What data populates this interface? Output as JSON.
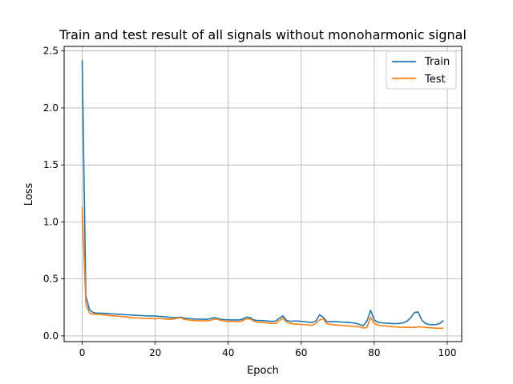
{
  "chart_data": {
    "type": "line",
    "title": "Train and test result of all signals without monoharmonic signal",
    "xlabel": "Epoch",
    "ylabel": "Loss",
    "xlim": [
      -4.95,
      103.95
    ],
    "ylim": [
      -0.05,
      2.54
    ],
    "xticks": [
      0,
      20,
      40,
      60,
      80,
      100
    ],
    "yticks": [
      0.0,
      0.5,
      1.0,
      1.5,
      2.0,
      2.5
    ],
    "xtick_labels": [
      "0",
      "20",
      "40",
      "60",
      "80",
      "100"
    ],
    "ytick_labels": [
      "0.0",
      "0.5",
      "1.0",
      "1.5",
      "2.0",
      "2.5"
    ],
    "grid": true,
    "legend_position": "top-right",
    "colors": {
      "Train": "#1f77b4",
      "Test": "#ff7f0e"
    },
    "x": [
      0,
      1,
      2,
      3,
      4,
      5,
      6,
      7,
      8,
      9,
      10,
      11,
      12,
      13,
      14,
      15,
      16,
      17,
      18,
      19,
      20,
      21,
      22,
      23,
      24,
      25,
      26,
      27,
      28,
      29,
      30,
      31,
      32,
      33,
      34,
      35,
      36,
      37,
      38,
      39,
      40,
      41,
      42,
      43,
      44,
      45,
      46,
      47,
      48,
      49,
      50,
      51,
      52,
      53,
      54,
      55,
      56,
      57,
      58,
      59,
      60,
      61,
      62,
      63,
      64,
      65,
      66,
      67,
      68,
      69,
      70,
      71,
      72,
      73,
      74,
      75,
      76,
      77,
      78,
      79,
      80,
      81,
      82,
      83,
      84,
      85,
      86,
      87,
      88,
      89,
      90,
      91,
      92,
      93,
      94,
      95,
      96,
      97,
      98,
      99
    ],
    "series": [
      {
        "name": "Train",
        "values": [
          2.42,
          0.35,
          0.23,
          0.205,
          0.2,
          0.2,
          0.198,
          0.196,
          0.194,
          0.192,
          0.19,
          0.188,
          0.186,
          0.184,
          0.182,
          0.18,
          0.179,
          0.177,
          0.176,
          0.175,
          0.174,
          0.172,
          0.17,
          0.166,
          0.162,
          0.16,
          0.16,
          0.165,
          0.155,
          0.152,
          0.15,
          0.148,
          0.147,
          0.146,
          0.145,
          0.15,
          0.16,
          0.155,
          0.145,
          0.143,
          0.142,
          0.14,
          0.14,
          0.14,
          0.148,
          0.165,
          0.16,
          0.14,
          0.135,
          0.135,
          0.133,
          0.13,
          0.128,
          0.13,
          0.155,
          0.175,
          0.135,
          0.128,
          0.13,
          0.13,
          0.128,
          0.125,
          0.12,
          0.118,
          0.13,
          0.185,
          0.165,
          0.125,
          0.125,
          0.125,
          0.124,
          0.122,
          0.12,
          0.118,
          0.115,
          0.11,
          0.1,
          0.09,
          0.13,
          0.225,
          0.14,
          0.12,
          0.115,
          0.112,
          0.11,
          0.108,
          0.108,
          0.11,
          0.115,
          0.13,
          0.16,
          0.205,
          0.21,
          0.14,
          0.11,
          0.1,
          0.098,
          0.1,
          0.11,
          0.135
        ]
      },
      {
        "name": "Test",
        "values": [
          1.13,
          0.28,
          0.2,
          0.19,
          0.19,
          0.187,
          0.185,
          0.182,
          0.178,
          0.175,
          0.172,
          0.169,
          0.166,
          0.163,
          0.16,
          0.158,
          0.156,
          0.154,
          0.152,
          0.155,
          0.148,
          0.157,
          0.15,
          0.148,
          0.145,
          0.148,
          0.155,
          0.16,
          0.145,
          0.14,
          0.137,
          0.135,
          0.133,
          0.132,
          0.132,
          0.135,
          0.145,
          0.148,
          0.135,
          0.13,
          0.128,
          0.128,
          0.126,
          0.125,
          0.135,
          0.15,
          0.148,
          0.13,
          0.12,
          0.118,
          0.116,
          0.113,
          0.11,
          0.11,
          0.135,
          0.155,
          0.12,
          0.11,
          0.105,
          0.103,
          0.1,
          0.098,
          0.095,
          0.093,
          0.11,
          0.14,
          0.15,
          0.11,
          0.1,
          0.097,
          0.094,
          0.091,
          0.089,
          0.087,
          0.085,
          0.082,
          0.078,
          0.07,
          0.075,
          0.165,
          0.11,
          0.095,
          0.09,
          0.087,
          0.084,
          0.081,
          0.078,
          0.077,
          0.076,
          0.076,
          0.075,
          0.074,
          0.08,
          0.078,
          0.075,
          0.072,
          0.07,
          0.068,
          0.067,
          0.066
        ]
      }
    ]
  }
}
